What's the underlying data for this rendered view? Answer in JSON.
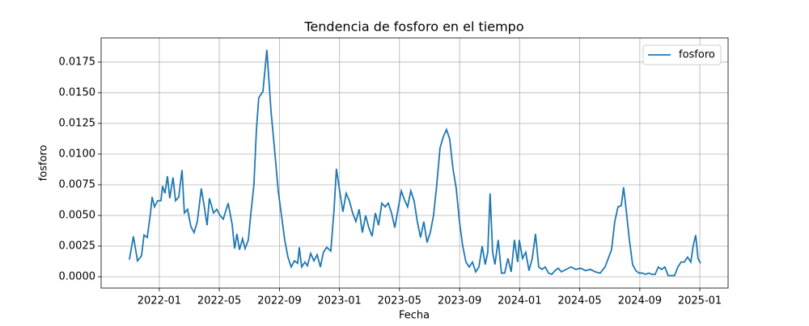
{
  "chart_data": {
    "type": "line",
    "title": "Tendencia de fosforo en el tiempo",
    "x_label": "Fecha",
    "y_label": "fosforo",
    "x": [
      2021.834,
      2021.856,
      2021.879,
      2021.901,
      2021.915,
      2021.933,
      2021.951,
      2021.96,
      2021.973,
      2021.991,
      2022.009,
      2022.018,
      2022.031,
      2022.045,
      2022.058,
      2022.076,
      2022.09,
      2022.108,
      2022.126,
      2022.139,
      2022.157,
      2022.175,
      2022.193,
      2022.211,
      2022.233,
      2022.251,
      2022.265,
      2022.278,
      2022.301,
      2022.319,
      2022.337,
      2022.355,
      2022.382,
      2022.404,
      2022.418,
      2022.431,
      2022.445,
      2022.462,
      2022.476,
      2022.494,
      2022.507,
      2022.525,
      2022.539,
      2022.552,
      2022.575,
      2022.597,
      2022.62,
      2022.642,
      2022.66,
      2022.678,
      2022.696,
      2022.714,
      2022.732,
      2022.75,
      2022.768,
      2022.777,
      2022.79,
      2022.808,
      2022.822,
      2022.84,
      2022.858,
      2022.876,
      2022.894,
      2022.911,
      2022.929,
      2022.952,
      2022.97,
      2022.983,
      2023.001,
      2023.019,
      2023.037,
      2023.055,
      2023.073,
      2023.091,
      2023.109,
      2023.127,
      2023.145,
      2023.163,
      2023.181,
      2023.199,
      2023.217,
      2023.235,
      2023.253,
      2023.271,
      2023.289,
      2023.307,
      2023.325,
      2023.343,
      2023.36,
      2023.378,
      2023.396,
      2023.414,
      2023.432,
      2023.45,
      2023.468,
      2023.486,
      2023.504,
      2023.522,
      2023.54,
      2023.558,
      2023.576,
      2023.594,
      2023.612,
      2023.63,
      2023.648,
      2023.666,
      2023.684,
      2023.702,
      2023.72,
      2023.738,
      2023.756,
      2023.774,
      2023.792,
      2023.809,
      2023.823,
      2023.836,
      2023.85,
      2023.863,
      2023.881,
      2023.899,
      2023.917,
      2023.935,
      2023.953,
      2023.971,
      2023.989,
      2023.998,
      2024.016,
      2024.034,
      2024.052,
      2024.07,
      2024.088,
      2024.106,
      2024.124,
      2024.142,
      2024.16,
      2024.178,
      2024.196,
      2024.214,
      2024.232,
      2024.258,
      2024.285,
      2024.312,
      2024.339,
      2024.366,
      2024.393,
      2024.42,
      2024.447,
      2024.474,
      2024.492,
      2024.51,
      2024.528,
      2024.546,
      2024.564,
      2024.577,
      2024.591,
      2024.609,
      2024.627,
      2024.645,
      2024.663,
      2024.681,
      2024.698,
      2024.716,
      2024.734,
      2024.752,
      2024.77,
      2024.788,
      2024.806,
      2024.824,
      2024.842,
      2024.86,
      2024.878,
      2024.896,
      2024.914,
      2024.932,
      2024.95,
      2024.963,
      2024.977,
      2024.99,
      2025.004
    ],
    "series": [
      {
        "name": "fosforo",
        "color": "#1f77b4",
        "values": [
          0.0014,
          0.0033,
          0.0013,
          0.0017,
          0.0034,
          0.0032,
          0.0052,
          0.0065,
          0.0057,
          0.0062,
          0.0062,
          0.0074,
          0.0068,
          0.0082,
          0.0064,
          0.0081,
          0.0062,
          0.0065,
          0.0087,
          0.0052,
          0.0055,
          0.0041,
          0.0036,
          0.0045,
          0.0072,
          0.0056,
          0.0042,
          0.0064,
          0.0052,
          0.0055,
          0.005,
          0.0047,
          0.006,
          0.0043,
          0.0023,
          0.0035,
          0.0022,
          0.0031,
          0.0023,
          0.003,
          0.005,
          0.0075,
          0.012,
          0.0146,
          0.0151,
          0.0185,
          0.0135,
          0.01,
          0.007,
          0.005,
          0.003,
          0.0016,
          0.0008,
          0.0013,
          0.0011,
          0.0024,
          0.0008,
          0.0012,
          0.0009,
          0.0019,
          0.0013,
          0.0018,
          0.0008,
          0.002,
          0.0024,
          0.0021,
          0.0055,
          0.0088,
          0.007,
          0.0053,
          0.0068,
          0.0062,
          0.0052,
          0.0045,
          0.0055,
          0.0036,
          0.005,
          0.004,
          0.0033,
          0.0052,
          0.0042,
          0.006,
          0.0057,
          0.006,
          0.0052,
          0.004,
          0.0055,
          0.007,
          0.0063,
          0.0057,
          0.007,
          0.0062,
          0.0045,
          0.0032,
          0.0045,
          0.0028,
          0.0036,
          0.005,
          0.0075,
          0.0105,
          0.0114,
          0.012,
          0.0112,
          0.0088,
          0.0072,
          0.0045,
          0.0025,
          0.0012,
          0.0008,
          0.0012,
          0.0004,
          0.0008,
          0.0025,
          0.001,
          0.002,
          0.0068,
          0.002,
          0.001,
          0.003,
          0.0003,
          0.0003,
          0.0015,
          0.0004,
          0.003,
          0.0012,
          0.003,
          0.0015,
          0.002,
          0.0005,
          0.0015,
          0.0035,
          0.0008,
          0.0006,
          0.0008,
          0.0003,
          0.0002,
          0.0005,
          0.0007,
          0.0004,
          0.0006,
          0.0008,
          0.0006,
          0.0007,
          0.0005,
          0.0006,
          0.0004,
          0.0003,
          0.0008,
          0.0015,
          0.0022,
          0.0045,
          0.0057,
          0.0058,
          0.0073,
          0.0055,
          0.003,
          0.001,
          0.0005,
          0.0003,
          0.0003,
          0.0002,
          0.0003,
          0.0002,
          0.0002,
          0.0008,
          0.0006,
          0.0008,
          0.0001,
          0.0001,
          0.0001,
          0.0008,
          0.0012,
          0.0012,
          0.0016,
          0.0012,
          0.0025,
          0.0034,
          0.0015,
          0.0011
        ]
      }
    ],
    "xlim": [
      2021.677,
      2025.157
    ],
    "xticks": [
      {
        "value": 2022.0,
        "label": "2022-01"
      },
      {
        "value": 2022.333,
        "label": "2022-05"
      },
      {
        "value": 2022.667,
        "label": "2022-09"
      },
      {
        "value": 2023.0,
        "label": "2023-01"
      },
      {
        "value": 2023.333,
        "label": "2023-05"
      },
      {
        "value": 2023.667,
        "label": "2023-09"
      },
      {
        "value": 2024.0,
        "label": "2024-01"
      },
      {
        "value": 2024.333,
        "label": "2024-05"
      },
      {
        "value": 2024.667,
        "label": "2024-09"
      },
      {
        "value": 2025.0,
        "label": "2025-01"
      }
    ],
    "ylim": [
      -0.00092,
      0.01947
    ],
    "yticks": [
      {
        "value": 0,
        "label": "0.0000"
      },
      0.0025,
      {
        "value": 0.005,
        "label": "0.0050"
      },
      0.0075,
      {
        "value": 0.01,
        "label": "0.0100"
      },
      0.0125,
      {
        "value": 0.015,
        "label": "0.0150"
      },
      0.0175
    ],
    "grid": true,
    "legend": "upper right"
  }
}
